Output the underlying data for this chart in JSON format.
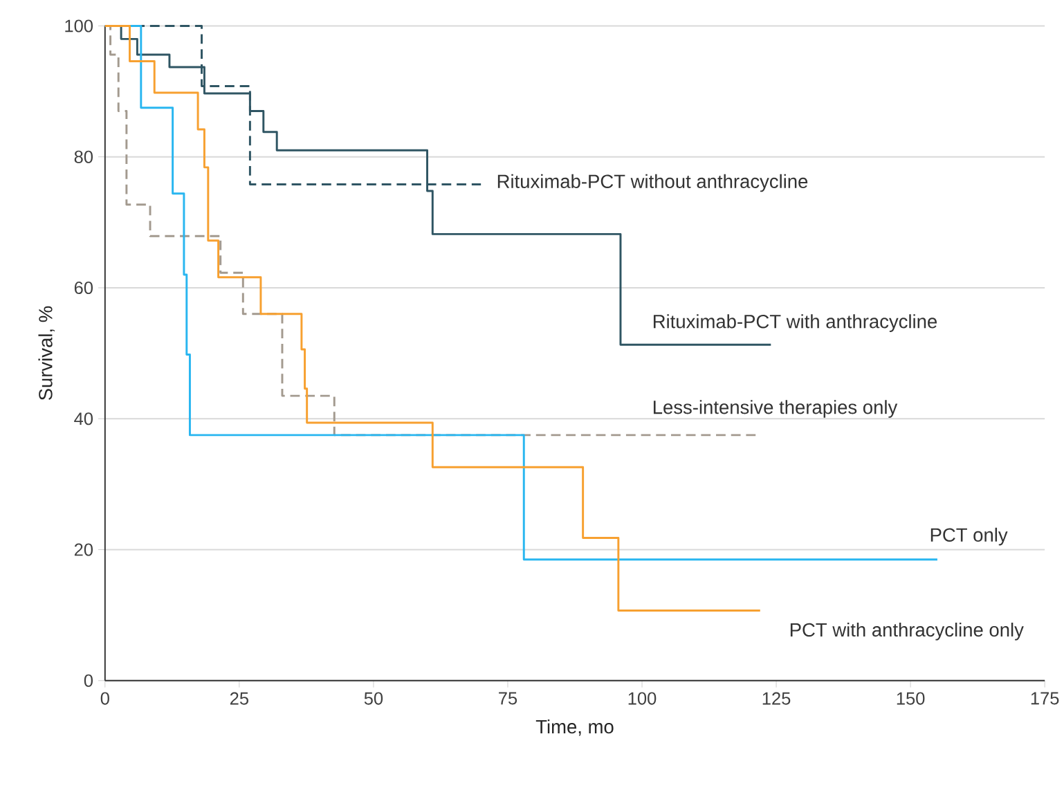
{
  "chart_data": {
    "type": "step",
    "xlabel": "Time, mo",
    "ylabel": "Survival, %",
    "xlim": [
      0,
      175
    ],
    "ylim": [
      0,
      100
    ],
    "xticks": [
      0,
      25,
      50,
      75,
      100,
      125,
      150,
      175
    ],
    "yticks": [
      0,
      20,
      40,
      60,
      80,
      100
    ],
    "grid": "y",
    "series": [
      {
        "name": "Rituximab-PCT without anthracycline",
        "color": "#2f5563",
        "line_style": "dashed",
        "x": [
          0,
          18,
          27,
          70
        ],
        "values": [
          100,
          90.8,
          75.8,
          75.8
        ]
      },
      {
        "name": "Rituximab-PCT with anthracycline",
        "color": "#2f5563",
        "line_style": "solid",
        "x": [
          0,
          3,
          6,
          12,
          18.5,
          27,
          29.5,
          32,
          60,
          61,
          96,
          124
        ],
        "values": [
          100,
          98,
          95.6,
          93.7,
          89.7,
          87,
          83.8,
          81,
          74.8,
          68.2,
          51.3,
          51.3
        ]
      },
      {
        "name": "Less-intensive therapies only",
        "color": "#a39a8f",
        "line_style": "dashed",
        "x": [
          0,
          1,
          2.5,
          4,
          8.4,
          21.5,
          25.7,
          33,
          42.7,
          122
        ],
        "values": [
          100,
          95.6,
          87,
          72.7,
          67.9,
          62.3,
          56,
          43.5,
          37.5,
          37.5
        ]
      },
      {
        "name": "PCT only",
        "color": "#29b6f0",
        "line_style": "solid",
        "x": [
          0,
          6.7,
          12.6,
          14.7,
          15.2,
          15.8,
          78,
          155
        ],
        "values": [
          100,
          87.5,
          74.4,
          62,
          49.8,
          37.5,
          18.5,
          18.5
        ]
      },
      {
        "name": "PCT with anthracycline only",
        "color": "#f7a030",
        "line_style": "solid",
        "x": [
          0,
          4.6,
          9.2,
          17.3,
          18.5,
          19.2,
          21.1,
          29,
          36.6,
          37.2,
          37.6,
          61,
          89,
          95.6,
          122
        ],
        "values": [
          100,
          94.6,
          89.8,
          84.2,
          78.4,
          67.2,
          61.6,
          56,
          50.6,
          44.6,
          39.4,
          32.6,
          21.8,
          10.7,
          10.7
        ]
      }
    ]
  }
}
